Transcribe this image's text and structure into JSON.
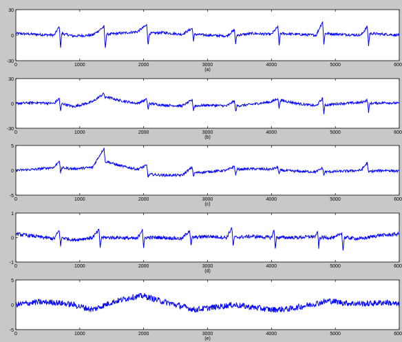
{
  "chart_data": [
    {
      "type": "line",
      "panel_label": "(a)",
      "xlim": [
        0,
        6000
      ],
      "ylim": [
        -30,
        30
      ],
      "x_ticks": [
        "0",
        "1000",
        "2000",
        "3000",
        "4000",
        "5000",
        "6000"
      ],
      "y_ticks": [
        "30",
        "0",
        "-30"
      ],
      "series": [
        {
          "color": "#0000ff",
          "description": "ECG-like trace, baseline around 0, amplitude about ±5 with spikes near beats",
          "x": [
            0,
            300,
            600,
            680,
            700,
            720,
            900,
            1200,
            1380,
            1400,
            1420,
            1600,
            1900,
            2050,
            2070,
            2090,
            2300,
            2600,
            2760,
            2780,
            2800,
            3000,
            3300,
            3420,
            3440,
            3460,
            3700,
            4000,
            4100,
            4120,
            4140,
            4400,
            4700,
            4800,
            4820,
            4840,
            5100,
            5400,
            5500,
            5520,
            5540,
            5800,
            6000
          ],
          "y": [
            2,
            1,
            0,
            10,
            -14,
            2,
            -1,
            0,
            10,
            -16,
            1,
            2,
            4,
            12,
            -12,
            2,
            3,
            1,
            8,
            -6,
            1,
            0,
            -1,
            6,
            -10,
            0,
            2,
            1,
            10,
            -12,
            2,
            1,
            0,
            16,
            -10,
            2,
            1,
            0,
            10,
            -12,
            2,
            1,
            0
          ]
        }
      ]
    },
    {
      "type": "line",
      "panel_label": "(b)",
      "xlim": [
        0,
        6000
      ],
      "ylim": [
        -30,
        30
      ],
      "x_ticks": [
        "0",
        "1000",
        "2000",
        "3000",
        "4000",
        "5000",
        "6000"
      ],
      "y_ticks": [
        "30",
        "0",
        "-30"
      ],
      "series": [
        {
          "color": "#0000ff",
          "description": "ECG-like trace with wandering baseline, peak near x=1400 around 12",
          "x": [
            0,
            300,
            600,
            680,
            700,
            720,
            900,
            1200,
            1380,
            1400,
            1420,
            1600,
            1900,
            2050,
            2070,
            2090,
            2300,
            2600,
            2760,
            2780,
            2800,
            3000,
            3300,
            3420,
            3440,
            3460,
            3700,
            4000,
            4100,
            4120,
            4140,
            4400,
            4700,
            4800,
            4820,
            4840,
            5100,
            5400,
            5500,
            5520,
            5540,
            5800,
            6000
          ],
          "y": [
            0,
            1,
            0,
            6,
            -10,
            0,
            -4,
            2,
            12,
            6,
            8,
            4,
            0,
            5,
            -8,
            0,
            -2,
            -3,
            4,
            -8,
            -3,
            -2,
            -3,
            3,
            -10,
            -3,
            -1,
            2,
            6,
            -6,
            4,
            0,
            -3,
            6,
            -12,
            -2,
            0,
            1,
            4,
            -10,
            0,
            1,
            0
          ]
        }
      ]
    },
    {
      "type": "line",
      "panel_label": "(c)",
      "xlim": [
        0,
        6000
      ],
      "ylim": [
        -5,
        5
      ],
      "x_ticks": [
        "0",
        "1000",
        "2000",
        "3000",
        "4000",
        "5000",
        "6000"
      ],
      "y_ticks": [
        "5",
        "0",
        "-5"
      ],
      "series": [
        {
          "color": "#0000ff",
          "description": "ECG-like trace, large spike near x=1400 reaching about 4.5",
          "x": [
            0,
            300,
            600,
            680,
            700,
            720,
            900,
            1200,
            1380,
            1400,
            1420,
            1600,
            1900,
            2050,
            2070,
            2090,
            2300,
            2600,
            2760,
            2780,
            2800,
            3000,
            3300,
            3420,
            3440,
            3460,
            3700,
            4000,
            4100,
            4120,
            4140,
            4400,
            4700,
            4800,
            4820,
            4840,
            5100,
            5400,
            5500,
            5520,
            5540,
            5800,
            6000
          ],
          "y": [
            0,
            0.2,
            0.6,
            2.0,
            -0.5,
            0.5,
            0.3,
            0.6,
            4.5,
            1.5,
            1.8,
            1.0,
            0.2,
            1.0,
            -1.5,
            -0.8,
            -1.0,
            -1.0,
            0.6,
            -1.2,
            -0.5,
            -0.3,
            0,
            0.8,
            -1.0,
            0.2,
            0.3,
            0.2,
            0.6,
            -0.8,
            0,
            -0.2,
            -0.3,
            0.5,
            -1.0,
            -0.3,
            -0.2,
            0,
            1.5,
            -0.6,
            -0.2,
            0,
            -0.2
          ]
        }
      ]
    },
    {
      "type": "line",
      "panel_label": "(d)",
      "xlim": [
        0,
        6000
      ],
      "ylim": [
        -1,
        1
      ],
      "x_ticks": [
        "0",
        "1000",
        "2000",
        "3000",
        "4000",
        "5000",
        "6000"
      ],
      "y_ticks": [
        "1",
        "0",
        "-1"
      ],
      "series": [
        {
          "color": "#0000ff",
          "description": "noisy trace with periodic spikes of about ±0.4",
          "x": [
            0,
            300,
            600,
            680,
            700,
            720,
            900,
            1200,
            1300,
            1320,
            1340,
            1600,
            1900,
            1980,
            2000,
            2020,
            2300,
            2600,
            2720,
            2740,
            2760,
            3000,
            3300,
            3380,
            3400,
            3420,
            3700,
            4000,
            4040,
            4060,
            4080,
            4400,
            4700,
            4720,
            4740,
            4760,
            5000,
            5100,
            5120,
            5140,
            5400,
            5700,
            5800,
            6000
          ],
          "y": [
            0.15,
            0.05,
            -0.05,
            0.3,
            -0.35,
            0,
            -0.1,
            0,
            0.3,
            -0.4,
            0,
            0,
            -0.05,
            0.35,
            -0.45,
            0,
            0,
            -0.05,
            0.3,
            -0.35,
            0,
            0.05,
            0,
            0.4,
            -0.35,
            0,
            0.05,
            0,
            0.3,
            -0.4,
            0,
            0,
            0.05,
            0.3,
            -0.4,
            0,
            0,
            0.2,
            -0.55,
            0,
            -0.05,
            0.1,
            0.1,
            0.15
          ]
        }
      ]
    },
    {
      "type": "line",
      "panel_label": "(e)",
      "xlim": [
        0,
        6000
      ],
      "ylim": [
        -5,
        5
      ],
      "x_ticks": [
        "0",
        "1000",
        "2000",
        "3000",
        "4000",
        "5000",
        "6000"
      ],
      "y_ticks": [
        "5",
        "0",
        "-5"
      ],
      "series": [
        {
          "color": "#0000ff",
          "description": "dense noisy trace, amplitude about ±2 with slow wander",
          "x": [
            0,
            300,
            600,
            900,
            1200,
            1500,
            1800,
            2000,
            2200,
            2500,
            2800,
            3100,
            3400,
            3700,
            4000,
            4300,
            4600,
            4900,
            5200,
            5500,
            5800,
            6000
          ],
          "y": [
            0,
            0.5,
            0.5,
            0,
            -1.0,
            0.5,
            1.5,
            1.8,
            1.0,
            0,
            -1.0,
            -0.5,
            0,
            -0.5,
            -1.0,
            -0.8,
            0,
            0.8,
            0.3,
            0.2,
            0.5,
            0
          ]
        }
      ]
    }
  ]
}
